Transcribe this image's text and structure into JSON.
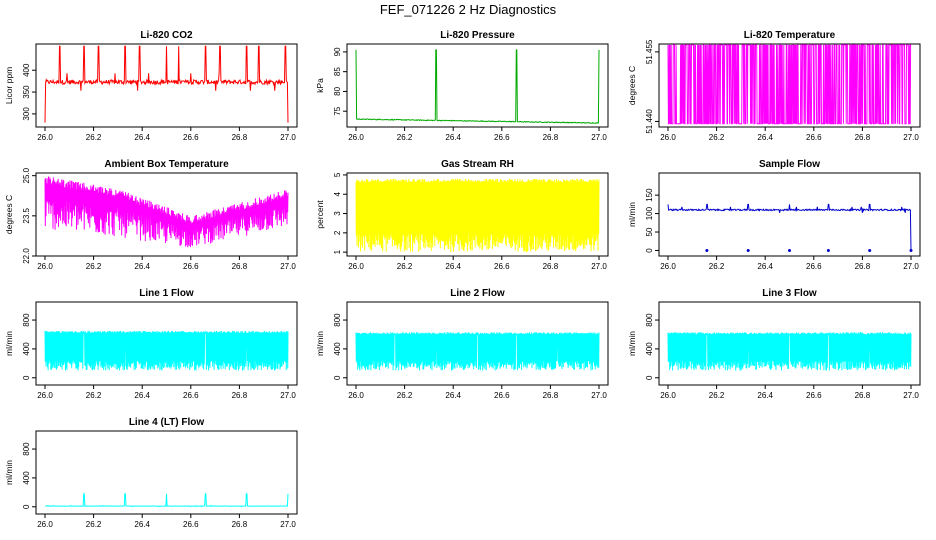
{
  "figure": {
    "title": "FEF_071226  2 Hz Diagnostics"
  },
  "chart_data": [
    {
      "type": "line",
      "title": "Li-820 CO2",
      "ylabel": "Licor ppm",
      "xlim": [
        26.0,
        27.0
      ],
      "ylim": [
        270,
        460
      ],
      "xticks": [
        "26.0",
        "26.2",
        "26.4",
        "26.6",
        "26.8",
        "27.0"
      ],
      "yticks": [
        "300",
        "350",
        "400"
      ],
      "color": "#ff0000",
      "pattern": "noise-spikes",
      "baseline": 373,
      "noise": 5,
      "spikes_up_at": [
        26.06,
        26.16,
        26.22,
        26.33,
        26.39,
        26.5,
        26.55,
        26.66,
        26.72,
        26.83,
        26.88,
        26.99
      ],
      "spike_up_to": 455,
      "spikes_down_at": [
        26.0,
        26.16,
        26.33,
        26.66,
        27.0
      ],
      "spike_down_to": 280
    },
    {
      "type": "line",
      "title": "Li-820 Pressure",
      "ylabel": "kPa",
      "xlim": [
        26.0,
        27.0
      ],
      "ylim": [
        71,
        92
      ],
      "xticks": [
        "26.0",
        "26.2",
        "26.4",
        "26.6",
        "26.8",
        "27.0"
      ],
      "yticks": [
        "75",
        "80",
        "85",
        "90"
      ],
      "color": "#00aa00",
      "pattern": "trend-spikes",
      "start": 73,
      "end": 72,
      "noise": 0.2,
      "spikes_up_at": [
        26.0,
        26.33,
        26.66,
        27.0
      ],
      "spike_up_to": 90.5
    },
    {
      "type": "line",
      "title": "Li-820 Temperature",
      "ylabel": "degrees C",
      "xlim": [
        26.0,
        27.0
      ],
      "ylim": [
        51.4388,
        51.4567
      ],
      "xticks": [
        "26.0",
        "26.2",
        "26.4",
        "26.6",
        "26.8",
        "27.0"
      ],
      "yticks": [
        "51.440",
        "51.455"
      ],
      "color": "#ff00ff",
      "pattern": "toggle",
      "low": 51.4395,
      "high": 51.4565
    },
    {
      "type": "line",
      "title": "Ambient Box Temperature",
      "ylabel": "degrees C",
      "xlim": [
        26.0,
        27.0
      ],
      "ylim": [
        22.0,
        25.1
      ],
      "xticks": [
        "26.0",
        "26.2",
        "26.4",
        "26.6",
        "26.8",
        "27.0"
      ],
      "yticks": [
        "22.0",
        "23.5",
        "25.0"
      ],
      "color": "#ff00ff",
      "pattern": "band-curve",
      "top_points": [
        [
          26.0,
          25.0
        ],
        [
          26.3,
          24.5
        ],
        [
          26.6,
          23.5
        ],
        [
          27.0,
          24.5
        ]
      ],
      "bottom_points": [
        [
          26.0,
          23.0
        ],
        [
          26.3,
          22.7
        ],
        [
          26.6,
          22.3
        ],
        [
          27.0,
          23.1
        ]
      ]
    },
    {
      "type": "line",
      "title": "Gas Stream RH",
      "ylabel": "percent",
      "xlim": [
        26.0,
        27.0
      ],
      "ylim": [
        0.8,
        5.1
      ],
      "xticks": [
        "26.0",
        "26.2",
        "26.4",
        "26.6",
        "26.8",
        "27.0"
      ],
      "yticks": [
        "1",
        "2",
        "3",
        "4",
        "5"
      ],
      "color": "#ffff00",
      "pattern": "band",
      "band_top": 4.8,
      "band_bottom": 1.0
    },
    {
      "type": "line",
      "title": "Sample Flow",
      "ylabel": "ml/min",
      "xlim": [
        26.0,
        27.0
      ],
      "ylim": [
        -15,
        210
      ],
      "xticks": [
        "26.0",
        "26.2",
        "26.4",
        "26.6",
        "26.8",
        "27.0"
      ],
      "yticks": [
        "0",
        "50",
        "100",
        "150"
      ],
      "color": "#0000cc",
      "pattern": "noise-spikes",
      "baseline": 110,
      "noise": 2,
      "spikes_up_at": [
        26.0,
        26.16,
        26.33,
        26.5,
        26.66,
        26.83
      ],
      "spike_up_to": 125,
      "spikes_down_at": [
        26.16,
        26.33,
        26.5,
        26.66,
        26.83,
        27.0
      ],
      "spike_down_to": 0
    },
    {
      "type": "line",
      "title": "Line 1 Flow",
      "ylabel": "ml/min",
      "xlim": [
        26.0,
        27.0
      ],
      "ylim": [
        -100,
        1050
      ],
      "xticks": [
        "26.0",
        "26.2",
        "26.4",
        "26.6",
        "26.8",
        "27.0"
      ],
      "yticks": [
        "0",
        "400",
        "800"
      ],
      "color": "#00ffff",
      "pattern": "band",
      "band_top": 650,
      "band_bottom": 100,
      "gaps_at": [
        26.16,
        26.33,
        26.66,
        26.83
      ]
    },
    {
      "type": "line",
      "title": "Line 2 Flow",
      "ylabel": "ml/min",
      "xlim": [
        26.0,
        27.0
      ],
      "ylim": [
        -100,
        1050
      ],
      "xticks": [
        "26.0",
        "26.2",
        "26.4",
        "26.6",
        "26.8",
        "27.0"
      ],
      "yticks": [
        "0",
        "400",
        "800"
      ],
      "color": "#00ffff",
      "pattern": "band",
      "band_top": 630,
      "band_bottom": 100,
      "gaps_at": [
        26.16,
        26.33,
        26.5,
        26.66,
        26.83
      ]
    },
    {
      "type": "line",
      "title": "Line 3 Flow",
      "ylabel": "ml/min",
      "xlim": [
        26.0,
        27.0
      ],
      "ylim": [
        -100,
        1050
      ],
      "xticks": [
        "26.0",
        "26.2",
        "26.4",
        "26.6",
        "26.8",
        "27.0"
      ],
      "yticks": [
        "0",
        "400",
        "800"
      ],
      "color": "#00ffff",
      "pattern": "band",
      "band_top": 630,
      "band_bottom": 100,
      "gaps_at": [
        26.16,
        26.33,
        26.5,
        26.66,
        26.83
      ]
    },
    {
      "type": "line",
      "title": "Line 4 (LT) Flow",
      "ylabel": "ml/min",
      "xlim": [
        26.0,
        27.0
      ],
      "ylim": [
        -100,
        1050
      ],
      "xticks": [
        "26.0",
        "26.2",
        "26.4",
        "26.6",
        "26.8",
        "27.0"
      ],
      "yticks": [
        "0",
        "400",
        "800"
      ],
      "color": "#00ffff",
      "pattern": "noise-spikes",
      "baseline": 10,
      "noise": 2,
      "spikes_up_at": [
        26.16,
        26.33,
        26.5,
        26.66,
        26.83,
        27.0
      ],
      "spike_up_to": 180,
      "spikes_down_at": [],
      "spike_down_to": 0
    }
  ]
}
